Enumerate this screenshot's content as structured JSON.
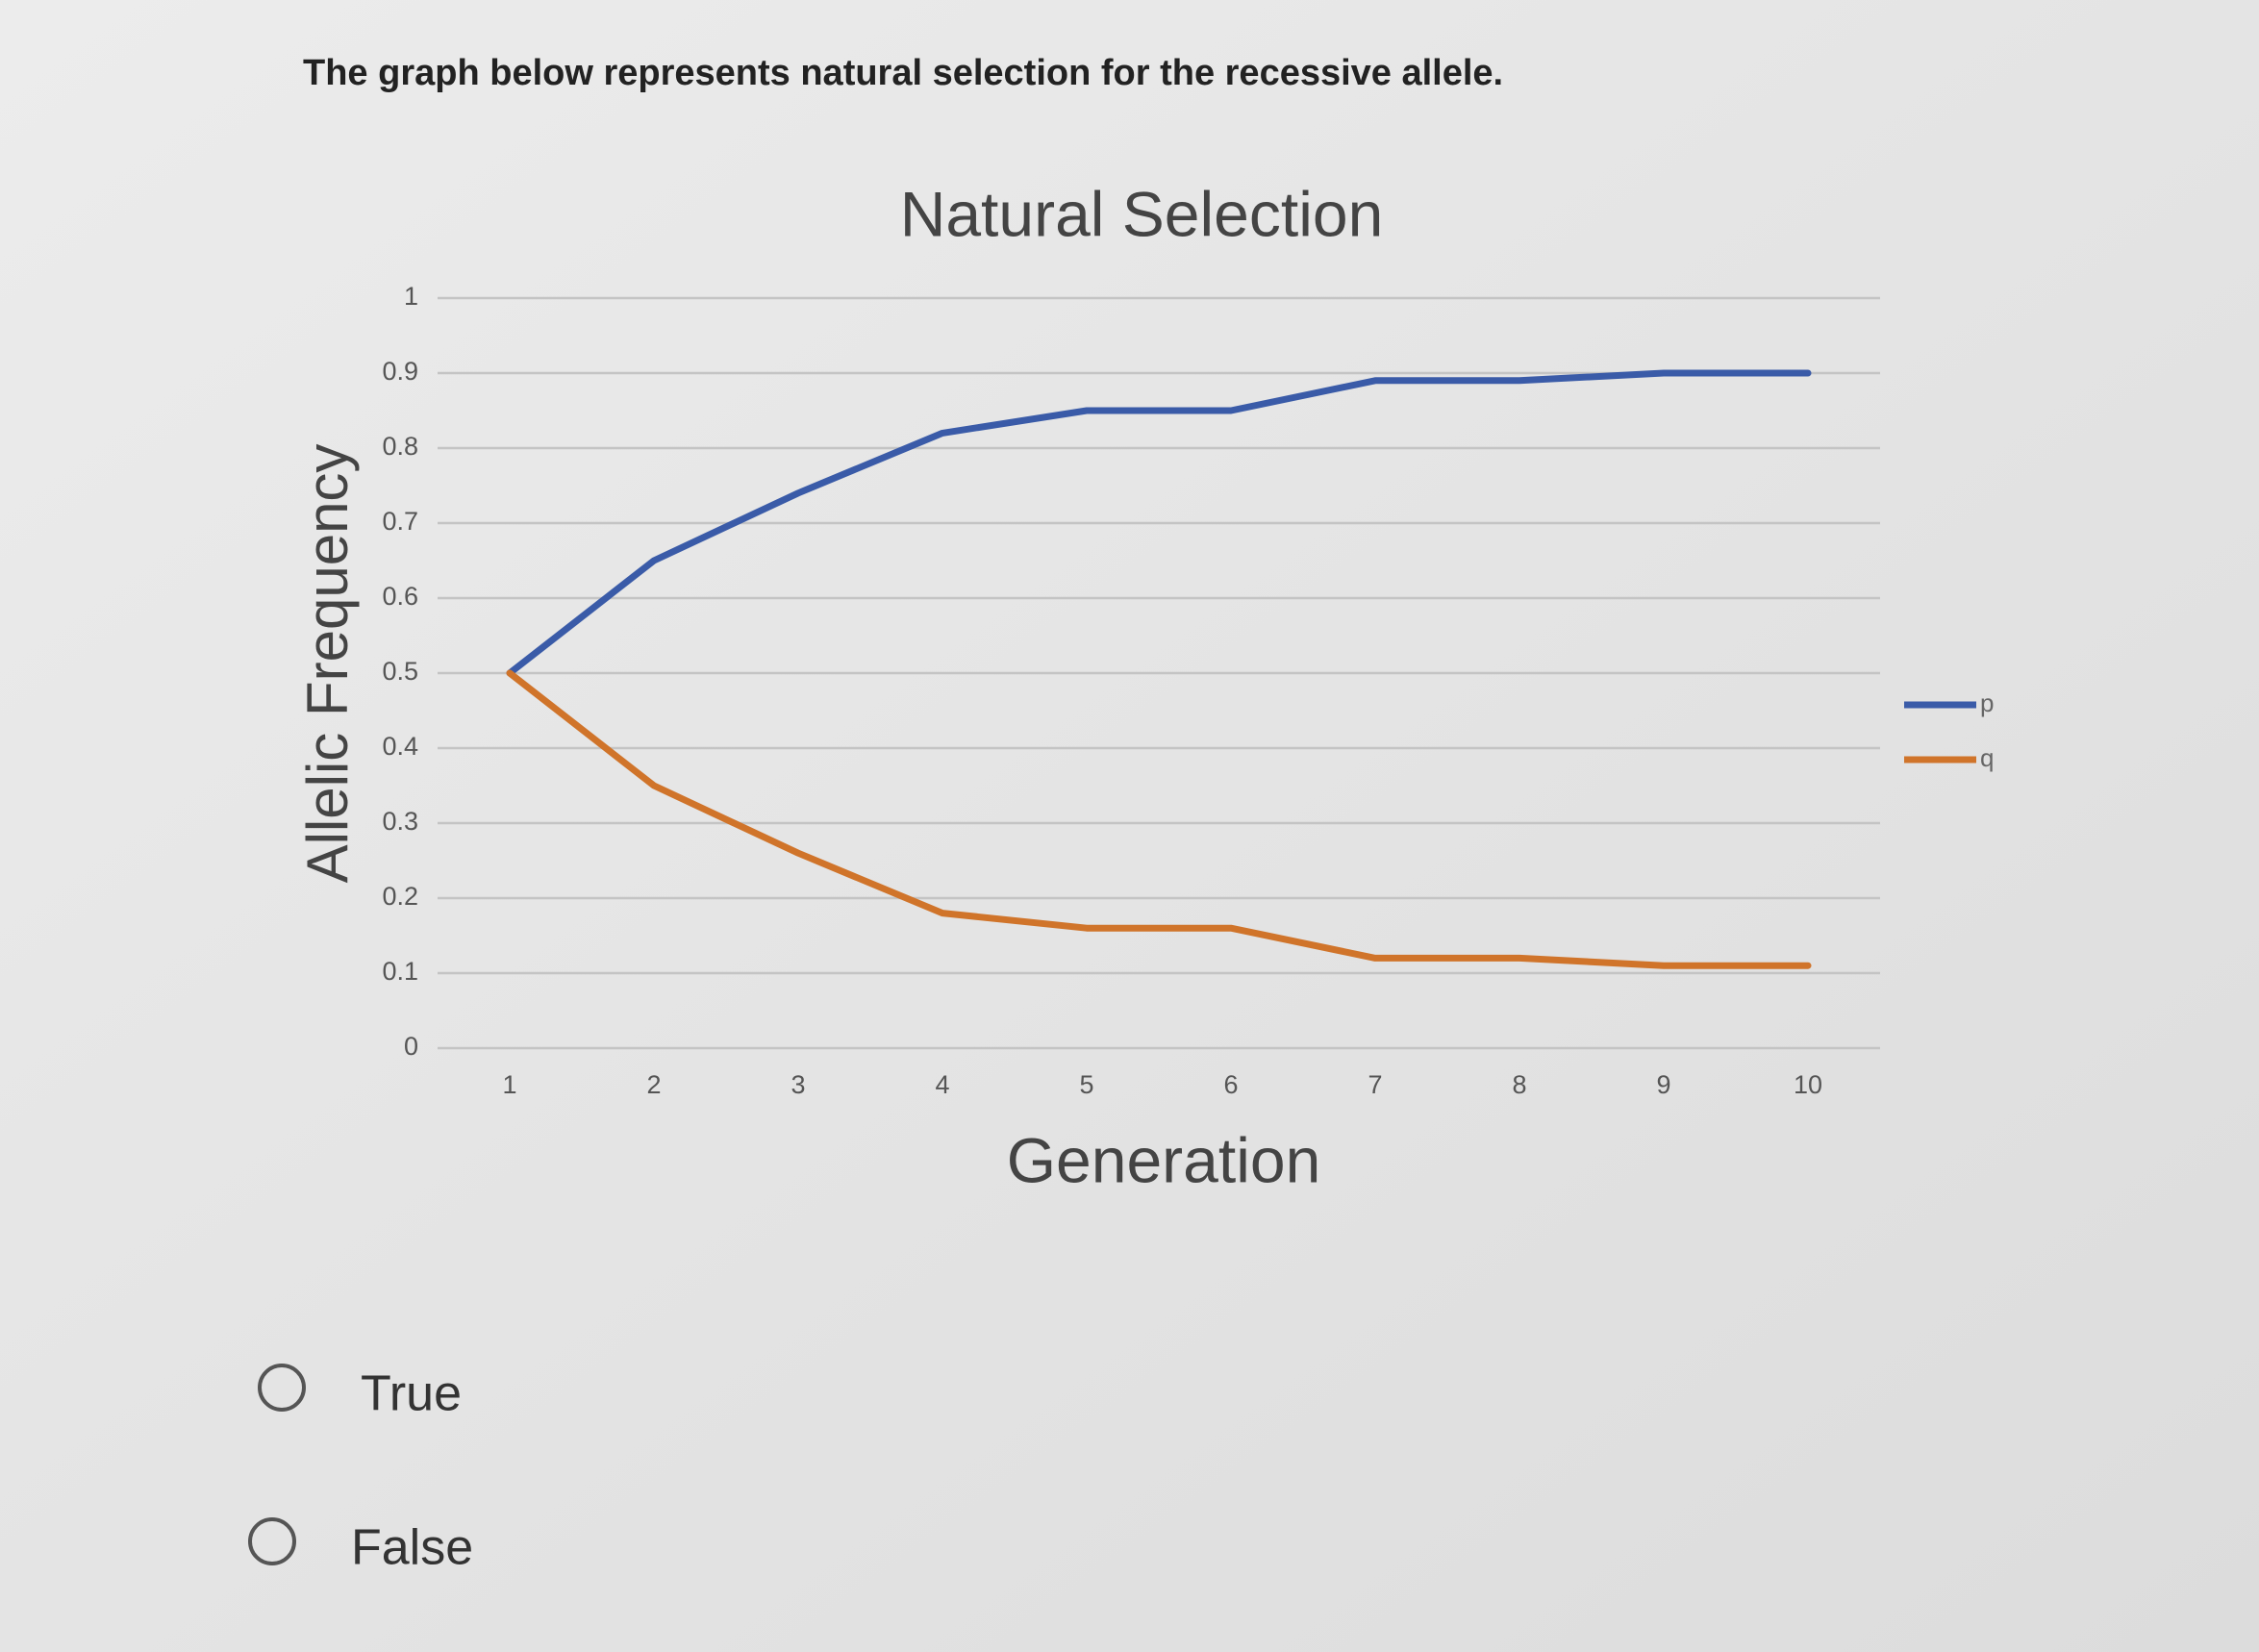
{
  "question": "The graph below represents natural selection for the recessive allele.",
  "chart_data": {
    "type": "line",
    "title": "Natural Selection",
    "x_label": "Generation",
    "y_label": "Allelic Frequency",
    "categories": [
      "1",
      "2",
      "3",
      "4",
      "5",
      "6",
      "7",
      "8",
      "9",
      "10"
    ],
    "series": [
      {
        "name": "p",
        "color": "#3a5ba8",
        "values": [
          0.5,
          0.65,
          0.74,
          0.82,
          0.85,
          0.85,
          0.89,
          0.89,
          0.9,
          0.9
        ]
      },
      {
        "name": "q",
        "color": "#d0742a",
        "values": [
          0.5,
          0.35,
          0.26,
          0.18,
          0.16,
          0.16,
          0.12,
          0.12,
          0.11,
          0.11
        ]
      }
    ],
    "ylim": [
      0,
      1
    ],
    "yticks": [
      0,
      0.1,
      0.2,
      0.3,
      0.4,
      0.5,
      0.6,
      0.7,
      0.8,
      0.9,
      1
    ],
    "grid": true,
    "legend": "right"
  },
  "options": [
    "True",
    "False"
  ]
}
